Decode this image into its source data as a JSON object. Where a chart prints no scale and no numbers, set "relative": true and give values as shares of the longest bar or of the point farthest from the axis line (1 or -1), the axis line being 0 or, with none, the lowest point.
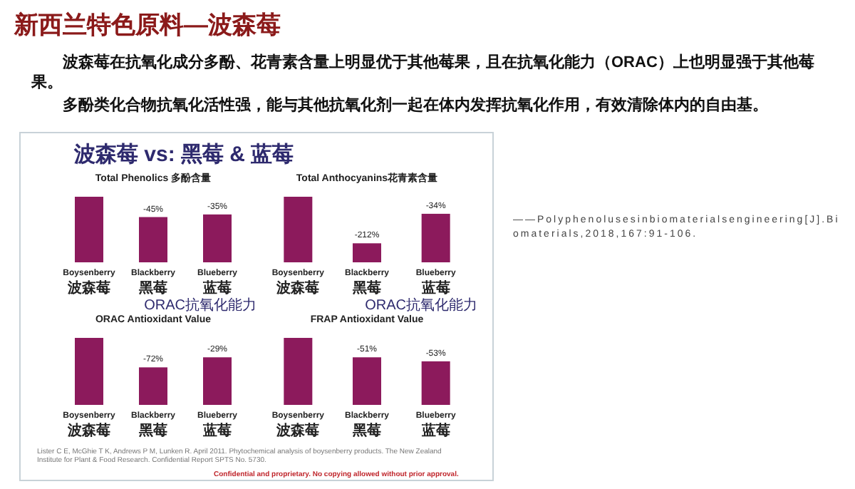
{
  "chart_data": [
    {
      "type": "other",
      "title": "新西兰特色原料—波森莓",
      "subtitle": "波森莓 vs: 黑莓 & 蓝莓",
      "annotations": [
        "波森莓在抗氧化成分多酚、花青素含量上明显优于其他莓果，且在抗氧化能力（ORAC）上也明显强于其他莓果。",
        "多酚类化合物抗氧化活性强，能与其他抗氧化剂一起在体内发挥抗氧化作用，有效清除体内的自由基。",
        "——Polyphenolusesinbiomaterialsengineering[J].Biomaterials,2018,167:91-106.",
        "Lister C E, McGhie T K, Andrews P M, Lunken R. April 2011. Phytochemical analysis of boysenberry products. The New Zealand Institute for Plant & Food Research. Confidential Report SPTS No. 5730.",
        "Confidential and proprietary. No copying allowed without prior approval."
      ]
    },
    {
      "type": "bar",
      "title": "Total Phenolics 多酚含量",
      "categories": [
        "Boysenberry\n波森莓",
        "Blackberry\n黑莓",
        "Blueberry\n蓝莓"
      ],
      "values": [
        1,
        0.69,
        0.73
      ],
      "annotations": [
        {
          "text": "-45%",
          "x": "Blackberry\n黑莓",
          "y": 0.69
        },
        {
          "text": "-35%",
          "x": "Blueberry\n蓝莓",
          "y": 0.73
        }
      ],
      "color": "#8c1a5c",
      "relative": true
    },
    {
      "type": "bar",
      "title": "Total Anthocyanins花青素含量",
      "categories": [
        "Boysenberry\n波森莓",
        "Blackberry\n黑莓",
        "Blueberry\n蓝莓"
      ],
      "values": [
        1,
        0.29,
        0.74
      ],
      "annotations": [
        {
          "text": "-212%",
          "x": "Blackberry\n黑莓",
          "y": 0.29
        },
        {
          "text": "-34%",
          "x": "Blueberry\n蓝莓",
          "y": 0.74
        }
      ],
      "color": "#8c1a5c",
      "relative": true
    },
    {
      "type": "bar",
      "title": "ORAC Antioxidant Value",
      "subtitle": "ORAC抗氧化能力",
      "categories": [
        "Boysenberry\n波森莓",
        "Blackberry\n黑莓",
        "Blueberry\n蓝莓"
      ],
      "values": [
        1,
        0.56,
        0.71
      ],
      "annotations": [
        {
          "text": "-72%",
          "x": "Blackberry\n黑莓",
          "y": 0.56
        },
        {
          "text": "-29%",
          "x": "Blueberry\n蓝莓",
          "y": 0.71
        }
      ],
      "color": "#8c1a5c",
      "relative": true
    },
    {
      "type": "bar",
      "title": "FRAP Antioxidant Value",
      "subtitle": "ORAC抗氧化能力",
      "categories": [
        "Boysenberry\n波森莓",
        "Blackberry\n黑莓",
        "Blueberry\n蓝莓"
      ],
      "values": [
        1,
        0.71,
        0.65
      ],
      "annotations": [
        {
          "text": "-51%",
          "x": "Blackberry\n黑莓",
          "y": 0.71
        },
        {
          "text": "-53%",
          "x": "Blueberry\n蓝莓",
          "y": 0.65
        }
      ],
      "color": "#8c1a5c",
      "relative": true
    }
  ]
}
